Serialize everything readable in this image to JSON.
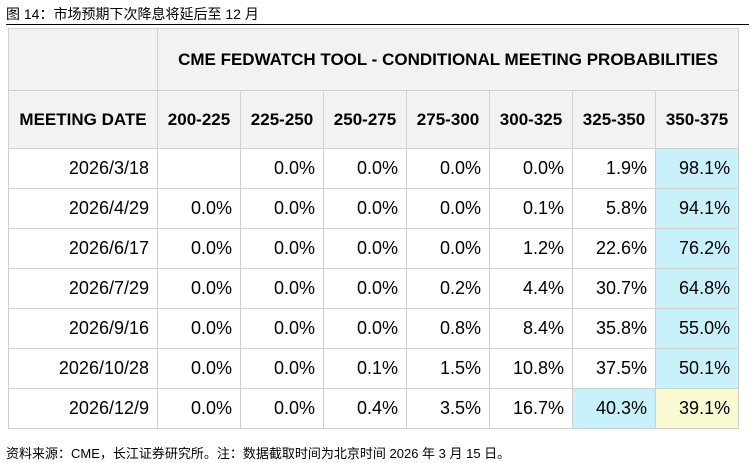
{
  "figure": {
    "caption": "图 14：市场预期下次降息将延后至 12 月",
    "source": "资料来源：CME，长江证券研究所。注：数据截取时间为北京时间 2026 年 3 月 15 日。"
  },
  "table": {
    "title": "CME FEDWATCH TOOL - CONDITIONAL MEETING PROBABILITIES",
    "columns": [
      "MEETING DATE",
      "200-225",
      "225-250",
      "250-275",
      "275-300",
      "300-325",
      "325-350",
      "350-375"
    ],
    "rows": [
      [
        "2026/3/18",
        null,
        "0.0%",
        "0.0%",
        "0.0%",
        "0.0%",
        "1.9%",
        "98.1%"
      ],
      [
        "2026/4/29",
        "0.0%",
        "0.0%",
        "0.0%",
        "0.0%",
        "0.1%",
        "5.8%",
        "94.1%"
      ],
      [
        "2026/6/17",
        "0.0%",
        "0.0%",
        "0.0%",
        "0.0%",
        "1.2%",
        "22.6%",
        "76.2%"
      ],
      [
        "2026/7/29",
        "0.0%",
        "0.0%",
        "0.0%",
        "0.2%",
        "4.4%",
        "30.7%",
        "64.8%"
      ],
      [
        "2026/9/16",
        "0.0%",
        "0.0%",
        "0.0%",
        "0.8%",
        "8.4%",
        "35.8%",
        "55.0%"
      ],
      [
        "2026/10/28",
        "0.0%",
        "0.0%",
        "0.1%",
        "1.5%",
        "10.8%",
        "37.5%",
        "50.1%"
      ],
      [
        "2026/12/9",
        "0.0%",
        "0.0%",
        "0.4%",
        "3.5%",
        "16.7%",
        "40.3%",
        "39.1%"
      ]
    ]
  }
}
